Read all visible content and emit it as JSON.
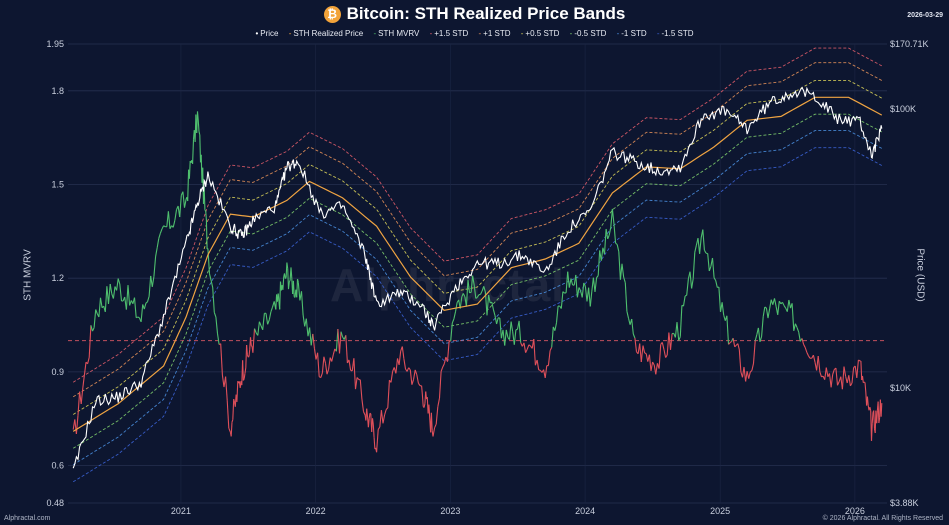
{
  "header": {
    "title": "Bitcoin: STH Realized Price Bands",
    "coin_symbol": "₿",
    "date": "2026-03-29"
  },
  "legend": [
    {
      "label": "Price",
      "color": "#ffffff",
      "style": "solid"
    },
    {
      "label": "STH Realized Price",
      "color": "#f0a442",
      "style": "solid"
    },
    {
      "label": "STH MVRV",
      "color": "#4fbf6e",
      "style": "solid"
    },
    {
      "label": "+1.5 STD",
      "color": "#e25d6a",
      "style": "dashed"
    },
    {
      "label": "+1 STD",
      "color": "#e8925a",
      "style": "dashed"
    },
    {
      "label": "+0.5 STD",
      "color": "#d9d25a",
      "style": "dashed"
    },
    {
      "label": "-0.5 STD",
      "color": "#7fcf6e",
      "style": "dashed"
    },
    {
      "label": "-1 STD",
      "color": "#4a8fe0",
      "style": "dashed"
    },
    {
      "label": "-1.5 STD",
      "color": "#3b63d6",
      "style": "dashed"
    }
  ],
  "axes": {
    "left_label": "STH MVRV",
    "right_label": "Price (USD)",
    "left_ticks": [
      "0.48",
      "0.6",
      "0.9",
      "1.2",
      "1.5",
      "1.8",
      "1.95"
    ],
    "right_ticks": [
      "$3.88K",
      "$10K",
      "$100K",
      "$170.71K"
    ],
    "x_ticks": [
      "2021",
      "2022",
      "2023",
      "2024",
      "2025",
      "2026"
    ]
  },
  "watermark": "Alphractal",
  "footer": {
    "left": "Alphractal.com",
    "right": "© 2026 Alphractal. All Rights Reserved"
  },
  "colors": {
    "background": "#0d1630",
    "mvrv_above": "#4fbf6e",
    "mvrv_below": "#e0505a",
    "reference_line": "#e05a66"
  },
  "chart_data": {
    "type": "line",
    "title": "Bitcoin: STH Realized Price Bands",
    "x_range": [
      "2020-03-01",
      "2026-03-29"
    ],
    "y_left": {
      "label": "STH MVRV",
      "range": [
        0.48,
        1.95
      ],
      "scale": "linear",
      "reference": 1.0
    },
    "y_right": {
      "label": "Price (USD)",
      "range": [
        3880,
        170710
      ],
      "scale": "log"
    },
    "grid": true,
    "legend": "top-center",
    "sth_mvrv": {
      "dates": [
        "2020-03",
        "2020-05",
        "2020-07",
        "2020-09",
        "2020-11",
        "2021-01",
        "2021-02",
        "2021-03",
        "2021-05",
        "2021-06",
        "2021-07",
        "2021-09",
        "2021-10",
        "2021-11",
        "2022-01",
        "2022-03",
        "2022-05",
        "2022-06",
        "2022-08",
        "2022-10",
        "2022-11",
        "2023-01",
        "2023-03",
        "2023-05",
        "2023-07",
        "2023-09",
        "2023-11",
        "2024-01",
        "2024-03",
        "2024-05",
        "2024-07",
        "2024-09",
        "2024-11",
        "2025-01",
        "2025-03",
        "2025-05",
        "2025-07",
        "2025-09",
        "2025-11",
        "2026-01",
        "2026-02",
        "2026-03"
      ],
      "values": [
        0.68,
        1.1,
        1.18,
        1.07,
        1.35,
        1.45,
        1.72,
        1.3,
        0.72,
        0.9,
        1.0,
        1.1,
        1.22,
        1.15,
        0.9,
        1.02,
        0.78,
        0.68,
        0.96,
        0.85,
        0.72,
        1.12,
        1.18,
        1.03,
        1.02,
        0.92,
        1.2,
        1.15,
        1.38,
        0.98,
        0.93,
        1.05,
        1.35,
        1.05,
        0.88,
        1.12,
        1.08,
        0.95,
        0.87,
        0.92,
        0.72,
        0.8
      ]
    },
    "price": {
      "dates": [
        "2020-03",
        "2020-05",
        "2020-07",
        "2020-09",
        "2020-11",
        "2021-01",
        "2021-02",
        "2021-03",
        "2021-05",
        "2021-06",
        "2021-07",
        "2021-09",
        "2021-10",
        "2021-11",
        "2022-01",
        "2022-03",
        "2022-05",
        "2022-06",
        "2022-08",
        "2022-10",
        "2022-11",
        "2023-01",
        "2023-03",
        "2023-05",
        "2023-07",
        "2023-09",
        "2023-11",
        "2024-01",
        "2024-03",
        "2024-05",
        "2024-07",
        "2024-09",
        "2024-11",
        "2025-01",
        "2025-03",
        "2025-05",
        "2025-07",
        "2025-09",
        "2025-11",
        "2026-01",
        "2026-02",
        "2026-03"
      ],
      "values": [
        5000,
        9000,
        9300,
        10500,
        18000,
        33000,
        46000,
        58000,
        38000,
        35000,
        40000,
        45000,
        62000,
        65000,
        42000,
        45000,
        30000,
        20000,
        22000,
        20000,
        16500,
        23000,
        28000,
        28000,
        30000,
        26000,
        37000,
        43000,
        70000,
        65000,
        60000,
        62000,
        95000,
        98000,
        85000,
        105000,
        115000,
        112000,
        92000,
        90000,
        68000,
        85000
      ]
    },
    "sth_realized_price": {
      "dates": [
        "2020-03",
        "2020-07",
        "2020-11",
        "2021-01",
        "2021-03",
        "2021-05",
        "2021-07",
        "2021-10",
        "2021-12",
        "2022-03",
        "2022-06",
        "2022-09",
        "2022-12",
        "2023-03",
        "2023-06",
        "2023-09",
        "2023-12",
        "2024-03",
        "2024-06",
        "2024-09",
        "2024-12",
        "2025-03",
        "2025-06",
        "2025-09",
        "2025-12",
        "2026-03"
      ],
      "values": [
        7000,
        8800,
        12000,
        18000,
        30000,
        42000,
        41000,
        47000,
        55000,
        48000,
        38000,
        25000,
        19000,
        20000,
        27000,
        29000,
        33000,
        50000,
        62000,
        61000,
        73000,
        91000,
        94000,
        110000,
        110000,
        95000
      ]
    },
    "bands": [
      {
        "name": "+1.5 STD",
        "multiplier": 1.5
      },
      {
        "name": "+1 STD",
        "multiplier": 1.33
      },
      {
        "name": "+0.5 STD",
        "multiplier": 1.15
      },
      {
        "name": "-0.5 STD",
        "multiplier": 0.87
      },
      {
        "name": "-1 STD",
        "multiplier": 0.76
      },
      {
        "name": "-1.5 STD",
        "multiplier": 0.66
      }
    ]
  }
}
